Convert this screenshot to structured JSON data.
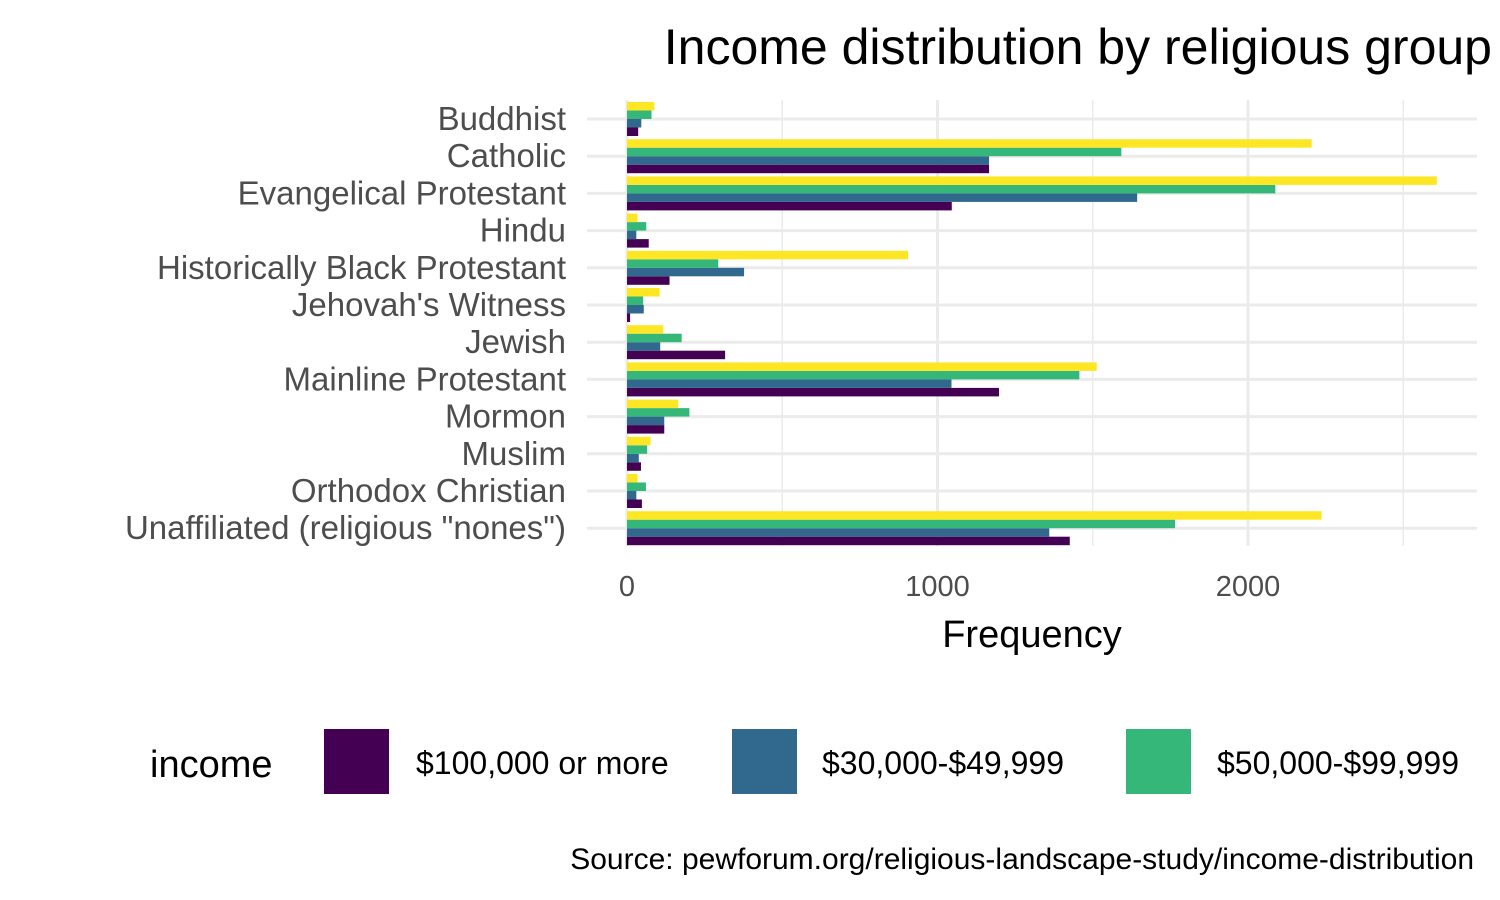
{
  "chart_data": {
    "type": "bar",
    "orientation": "horizontal",
    "title": "Income distribution by religious group",
    "xlabel": "Frequency",
    "ylabel": "",
    "xlim": [
      0,
      2750
    ],
    "x_ticks": [
      0,
      1000,
      2000
    ],
    "grid": true,
    "legend_position": "bottom",
    "legend_title": "income",
    "caption": "Source: pewforum.org/religious-landscape-study/income-distribution",
    "categories": [
      "Buddhist",
      "Catholic",
      "Evangelical Protestant",
      "Hindu",
      "Historically Black Protestant",
      "Jehovah's Witness",
      "Jewish",
      "Mainline Protestant",
      "Mormon",
      "Muslim",
      "Orthodox Christian",
      "Unaffiliated (religious \"nones\")"
    ],
    "series": [
      {
        "name": "$100,000 or more",
        "color": "#440154",
        "in_legend": true,
        "values": [
          36,
          1166,
          1046,
          70,
          137,
          10,
          316,
          1198,
          120,
          45,
          48,
          1426
        ]
      },
      {
        "name": "$30,000-$49,999",
        "color": "#31688E",
        "in_legend": true,
        "values": [
          46,
          1166,
          1643,
          30,
          377,
          54,
          107,
          1045,
          120,
          38,
          30,
          1360
        ]
      },
      {
        "name": "$50,000-$99,999",
        "color": "#35B779",
        "in_legend": true,
        "values": [
          79,
          1592,
          2088,
          62,
          294,
          52,
          176,
          1457,
          201,
          65,
          61,
          1765
        ]
      },
      {
        "name": "",
        "color": "#FDE725",
        "in_legend": false,
        "values": [
          88,
          2205,
          2608,
          34,
          905,
          105,
          117,
          1513,
          165,
          76,
          34,
          2237
        ]
      }
    ]
  }
}
